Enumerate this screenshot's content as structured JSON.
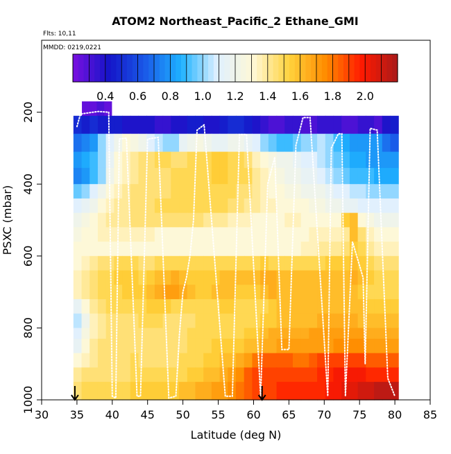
{
  "chart_data": {
    "type": "heatmap",
    "title": "ATOM2 Northeast_Pacific_2 Ethane_GMI",
    "subtitle_lines": [
      "Flts: 10,11",
      "MMDD: 0219,0221"
    ],
    "xlabel": "Latitude (deg N)",
    "ylabel": "PSXC (mbar)",
    "xlim": [
      30,
      85
    ],
    "ylim": [
      1000,
      0
    ],
    "xticks": [
      "30",
      "35",
      "40",
      "45",
      "50",
      "55",
      "60",
      "65",
      "70",
      "75",
      "80",
      "85"
    ],
    "yticks": [
      "200",
      "400",
      "600",
      "800",
      "1000"
    ],
    "colorbar": {
      "range": [
        0.2,
        2.2
      ],
      "ticks": [
        "0.4",
        "0.6",
        "0.8",
        "1.0",
        "1.2",
        "1.4",
        "1.6",
        "1.8",
        "2.0"
      ],
      "tick_values": [
        0.4,
        0.6,
        0.8,
        1.0,
        1.2,
        1.4,
        1.6,
        1.8,
        2.0
      ],
      "stops": [
        "#7a10e0",
        "#1414c8",
        "#1a5ae8",
        "#1eb2ff",
        "#dff0ff",
        "#fff8d6",
        "#ffd23c",
        "#ff8c00",
        "#ff1a00",
        "#aa1a1a"
      ]
    },
    "latitude_range": [
      34.5,
      80.5
    ],
    "pressure_bands": [
      {
        "p": [
          170,
          210
        ],
        "values": [
          0.25,
          0.25,
          0.3,
          0.25
        ]
      },
      {
        "p": [
          210,
          260
        ],
        "values": [
          0.5,
          0.45,
          0.5,
          0.45,
          0.45,
          0.45,
          0.4,
          0.4,
          0.4,
          0.4,
          0.35,
          0.35,
          0.4,
          0.4,
          0.45,
          0.45,
          0.4,
          0.4,
          0.45,
          0.5,
          0.5,
          0.45,
          0.4,
          0.35,
          0.3,
          0.3,
          0.35,
          0.35,
          0.3,
          0.3,
          0.35,
          0.35,
          0.35,
          0.3,
          0.3,
          0.35,
          0.35,
          0.3,
          0.4,
          0.45
        ]
      },
      {
        "p": [
          260,
          310
        ],
        "values": [
          0.7,
          0.75,
          0.8,
          1.0,
          1.1,
          1.2,
          1.3,
          1.25,
          1.2,
          1.1,
          1.05,
          1.0,
          1.0,
          1.15,
          1.2,
          1.25,
          1.2,
          1.15,
          1.15,
          1.2,
          1.2,
          1.15,
          1.1,
          1.0,
          0.95,
          0.9,
          0.9,
          0.95,
          1.0,
          1.0,
          1.05,
          1.0,
          0.9,
          0.85,
          0.8,
          0.8,
          0.8,
          0.8,
          0.7,
          0.65
        ]
      },
      {
        "p": [
          310,
          355
        ],
        "values": [
          0.8,
          0.85,
          0.9,
          1.0,
          1.15,
          1.3,
          1.35,
          1.4,
          1.45,
          1.45,
          1.5,
          1.5,
          1.45,
          1.45,
          1.5,
          1.5,
          1.5,
          1.55,
          1.55,
          1.5,
          1.5,
          1.45,
          1.35,
          1.3,
          1.25,
          1.2,
          1.2,
          1.15,
          1.1,
          1.1,
          1.05,
          1.0,
          0.95,
          0.9,
          0.85,
          0.85,
          0.8,
          0.8,
          0.8,
          0.8
        ]
      },
      {
        "p": [
          355,
          400
        ],
        "values": [
          0.75,
          0.8,
          0.9,
          1.0,
          1.2,
          1.3,
          1.35,
          1.4,
          1.45,
          1.45,
          1.45,
          1.45,
          1.5,
          1.5,
          1.5,
          1.5,
          1.5,
          1.55,
          1.55,
          1.5,
          1.5,
          1.5,
          1.4,
          1.35,
          1.3,
          1.25,
          1.2,
          1.2,
          1.15,
          1.15,
          1.1,
          1.05,
          1.0,
          0.95,
          0.9,
          0.9,
          0.9,
          0.85,
          0.85,
          0.85
        ]
      },
      {
        "p": [
          400,
          440
        ],
        "values": [
          0.95,
          1.0,
          1.1,
          1.2,
          1.3,
          1.35,
          1.4,
          1.45,
          1.45,
          1.45,
          1.45,
          1.45,
          1.5,
          1.5,
          1.5,
          1.5,
          1.5,
          1.5,
          1.5,
          1.5,
          1.45,
          1.45,
          1.4,
          1.35,
          1.3,
          1.3,
          1.25,
          1.25,
          1.2,
          1.2,
          1.2,
          1.15,
          1.1,
          1.1,
          1.05,
          1.05,
          1.0,
          1.0,
          1.0,
          1.0
        ]
      },
      {
        "p": [
          440,
          480
        ],
        "values": [
          1.1,
          1.15,
          1.2,
          1.3,
          1.35,
          1.4,
          1.4,
          1.45,
          1.45,
          1.45,
          1.5,
          1.5,
          1.5,
          1.5,
          1.5,
          1.5,
          1.5,
          1.5,
          1.5,
          1.45,
          1.45,
          1.4,
          1.4,
          1.35,
          1.35,
          1.3,
          1.3,
          1.3,
          1.3,
          1.25,
          1.25,
          1.2,
          1.2,
          1.15,
          1.15,
          1.1,
          1.1,
          1.1,
          1.1,
          1.1
        ]
      },
      {
        "p": [
          480,
          520
        ],
        "values": [
          1.2,
          1.25,
          1.3,
          1.35,
          1.4,
          1.4,
          1.4,
          1.45,
          1.45,
          1.45,
          1.45,
          1.45,
          1.45,
          1.45,
          1.45,
          1.45,
          1.4,
          1.4,
          1.4,
          1.35,
          1.35,
          1.35,
          1.3,
          1.3,
          1.3,
          1.3,
          1.35,
          1.35,
          1.3,
          1.3,
          1.3,
          1.3,
          1.3,
          1.55,
          1.6,
          1.3,
          1.25,
          1.2,
          1.2,
          1.2
        ]
      },
      {
        "p": [
          520,
          560
        ],
        "values": [
          1.25,
          1.3,
          1.3,
          1.35,
          1.35,
          1.35,
          1.35,
          1.35,
          1.35,
          1.35,
          1.3,
          1.3,
          1.3,
          1.3,
          1.3,
          1.3,
          1.3,
          1.3,
          1.3,
          1.3,
          1.3,
          1.3,
          1.3,
          1.3,
          1.3,
          1.3,
          1.3,
          1.3,
          1.3,
          1.35,
          1.35,
          1.35,
          1.35,
          1.4,
          1.6,
          1.45,
          1.35,
          1.3,
          1.3,
          1.3
        ]
      },
      {
        "p": [
          560,
          600
        ],
        "values": [
          1.3,
          1.3,
          1.3,
          1.3,
          1.3,
          1.3,
          1.3,
          1.3,
          1.3,
          1.3,
          1.3,
          1.3,
          1.3,
          1.3,
          1.3,
          1.3,
          1.3,
          1.3,
          1.3,
          1.3,
          1.3,
          1.3,
          1.3,
          1.3,
          1.3,
          1.3,
          1.3,
          1.3,
          1.35,
          1.35,
          1.4,
          1.4,
          1.4,
          1.45,
          1.55,
          1.5,
          1.4,
          1.35,
          1.35,
          1.35
        ]
      },
      {
        "p": [
          600,
          640
        ],
        "values": [
          1.3,
          1.35,
          1.4,
          1.45,
          1.45,
          1.5,
          1.5,
          1.5,
          1.45,
          1.45,
          1.5,
          1.5,
          1.5,
          1.5,
          1.5,
          1.5,
          1.5,
          1.5,
          1.5,
          1.5,
          1.5,
          1.5,
          1.5,
          1.55,
          1.5,
          1.5,
          1.5,
          1.5,
          1.5,
          1.5,
          1.5,
          1.55,
          1.55,
          1.55,
          1.6,
          1.55,
          1.5,
          1.45,
          1.45,
          1.45
        ]
      },
      {
        "p": [
          640,
          680
        ],
        "values": [
          1.35,
          1.4,
          1.45,
          1.5,
          1.5,
          1.55,
          1.55,
          1.55,
          1.5,
          1.55,
          1.6,
          1.6,
          1.65,
          1.6,
          1.55,
          1.55,
          1.55,
          1.55,
          1.6,
          1.6,
          1.6,
          1.6,
          1.6,
          1.65,
          1.65,
          1.6,
          1.6,
          1.6,
          1.6,
          1.6,
          1.6,
          1.6,
          1.6,
          1.6,
          1.65,
          1.6,
          1.55,
          1.5,
          1.5,
          1.5
        ]
      },
      {
        "p": [
          680,
          720
        ],
        "values": [
          1.35,
          1.4,
          1.45,
          1.5,
          1.5,
          1.5,
          1.55,
          1.55,
          1.55,
          1.6,
          1.65,
          1.7,
          1.7,
          1.65,
          1.6,
          1.55,
          1.55,
          1.6,
          1.6,
          1.6,
          1.55,
          1.55,
          1.55,
          1.6,
          1.65,
          1.6,
          1.6,
          1.6,
          1.6,
          1.6,
          1.6,
          1.6,
          1.6,
          1.6,
          1.6,
          1.55,
          1.5,
          1.5,
          1.5,
          1.5
        ]
      },
      {
        "p": [
          720,
          760
        ],
        "values": [
          1.15,
          1.3,
          1.4,
          1.45,
          1.5,
          1.5,
          1.5,
          1.5,
          1.5,
          1.55,
          1.55,
          1.55,
          1.5,
          1.5,
          1.5,
          1.5,
          1.5,
          1.5,
          1.55,
          1.55,
          1.5,
          1.5,
          1.5,
          1.5,
          1.55,
          1.6,
          1.6,
          1.6,
          1.6,
          1.6,
          1.6,
          1.6,
          1.6,
          1.6,
          1.6,
          1.6,
          1.55,
          1.55,
          1.55,
          1.55
        ]
      },
      {
        "p": [
          760,
          800
        ],
        "values": [
          1.05,
          1.2,
          1.35,
          1.4,
          1.45,
          1.45,
          1.45,
          1.45,
          1.5,
          1.5,
          1.5,
          1.45,
          1.45,
          1.45,
          1.45,
          1.5,
          1.5,
          1.5,
          1.5,
          1.5,
          1.5,
          1.5,
          1.5,
          1.55,
          1.55,
          1.6,
          1.6,
          1.6,
          1.6,
          1.6,
          1.65,
          1.65,
          1.65,
          1.65,
          1.65,
          1.6,
          1.6,
          1.6,
          1.6,
          1.6
        ]
      },
      {
        "p": [
          800,
          830
        ],
        "values": [
          1.1,
          1.25,
          1.35,
          1.4,
          1.45,
          1.45,
          1.45,
          1.45,
          1.45,
          1.45,
          1.45,
          1.45,
          1.45,
          1.45,
          1.5,
          1.5,
          1.5,
          1.5,
          1.5,
          1.5,
          1.5,
          1.55,
          1.55,
          1.6,
          1.65,
          1.65,
          1.65,
          1.65,
          1.65,
          1.7,
          1.7,
          1.7,
          1.7,
          1.7,
          1.7,
          1.7,
          1.65,
          1.65,
          1.65,
          1.65
        ]
      },
      {
        "p": [
          830,
          870
        ],
        "values": [
          1.15,
          1.3,
          1.4,
          1.45,
          1.45,
          1.45,
          1.45,
          1.45,
          1.45,
          1.45,
          1.45,
          1.45,
          1.45,
          1.45,
          1.5,
          1.5,
          1.5,
          1.55,
          1.55,
          1.55,
          1.55,
          1.6,
          1.6,
          1.65,
          1.65,
          1.7,
          1.7,
          1.7,
          1.7,
          1.7,
          1.7,
          1.7,
          1.75,
          1.75,
          1.75,
          1.75,
          1.7,
          1.7,
          1.7,
          1.7
        ]
      },
      {
        "p": [
          870,
          910
        ],
        "values": [
          1.3,
          1.35,
          1.4,
          1.45,
          1.45,
          1.45,
          1.45,
          1.5,
          1.45,
          1.45,
          1.45,
          1.45,
          1.45,
          1.5,
          1.5,
          1.5,
          1.55,
          1.55,
          1.6,
          1.6,
          1.65,
          1.7,
          1.8,
          1.85,
          1.85,
          1.85,
          1.85,
          1.8,
          1.8,
          1.85,
          1.9,
          1.9,
          1.9,
          1.9,
          1.9,
          1.9,
          1.85,
          1.85,
          1.85,
          1.85
        ]
      },
      {
        "p": [
          910,
          950
        ],
        "values": [
          1.4,
          1.45,
          1.45,
          1.45,
          1.45,
          1.45,
          1.45,
          1.5,
          1.5,
          1.5,
          1.5,
          1.5,
          1.5,
          1.5,
          1.55,
          1.55,
          1.6,
          1.6,
          1.65,
          1.7,
          1.75,
          1.85,
          1.9,
          1.9,
          1.9,
          1.9,
          1.9,
          1.9,
          1.9,
          1.9,
          1.95,
          1.95,
          2.0,
          2.0,
          2.0,
          2.0,
          1.95,
          1.95,
          1.95,
          1.95
        ]
      },
      {
        "p": [
          950,
          1000
        ],
        "values": [
          1.45,
          1.5,
          1.5,
          1.5,
          1.5,
          1.5,
          1.5,
          1.55,
          1.55,
          1.55,
          1.55,
          1.55,
          1.55,
          1.6,
          1.6,
          1.65,
          1.65,
          1.7,
          1.7,
          1.75,
          1.8,
          1.85,
          1.9,
          1.9,
          1.9,
          1.95,
          1.95,
          1.95,
          1.95,
          1.95,
          1.95,
          2.0,
          2.0,
          2.05,
          2.05,
          2.1,
          2.1,
          2.15,
          2.15,
          2.15
        ]
      }
    ],
    "flight_path": [
      [
        35,
        240
      ],
      [
        35.5,
        205
      ],
      [
        38,
        198
      ],
      [
        39.5,
        200
      ],
      [
        40,
        990
      ],
      [
        40.5,
        995
      ],
      [
        41,
        275
      ],
      [
        42,
        272
      ],
      [
        43.5,
        990
      ],
      [
        44,
        990
      ],
      [
        45,
        275
      ],
      [
        46.5,
        270
      ],
      [
        48,
        995
      ],
      [
        49,
        990
      ],
      [
        49.5,
        820
      ],
      [
        50,
        700
      ],
      [
        50.5,
        660
      ],
      [
        51,
        600
      ],
      [
        51.5,
        500
      ],
      [
        52,
        250
      ],
      [
        53,
        235
      ],
      [
        56,
        990
      ],
      [
        57,
        990
      ],
      [
        58,
        262
      ],
      [
        59,
        262
      ],
      [
        61,
        990
      ],
      [
        62,
        400
      ],
      [
        63,
        325
      ],
      [
        64,
        860
      ],
      [
        65,
        860
      ],
      [
        66,
        292
      ],
      [
        67,
        215
      ],
      [
        68,
        215
      ],
      [
        70.5,
        990
      ],
      [
        71,
        300
      ],
      [
        72,
        260
      ],
      [
        72.5,
        260
      ],
      [
        73,
        990
      ],
      [
        74,
        560
      ],
      [
        75.5,
        660
      ],
      [
        75.8,
        900
      ],
      [
        76.5,
        245
      ],
      [
        77.5,
        250
      ],
      [
        79,
        940
      ],
      [
        80,
        990
      ]
    ],
    "markers": [
      {
        "lat": 34.7,
        "label": ""
      },
      {
        "lat": 61.2,
        "label": ""
      }
    ]
  }
}
